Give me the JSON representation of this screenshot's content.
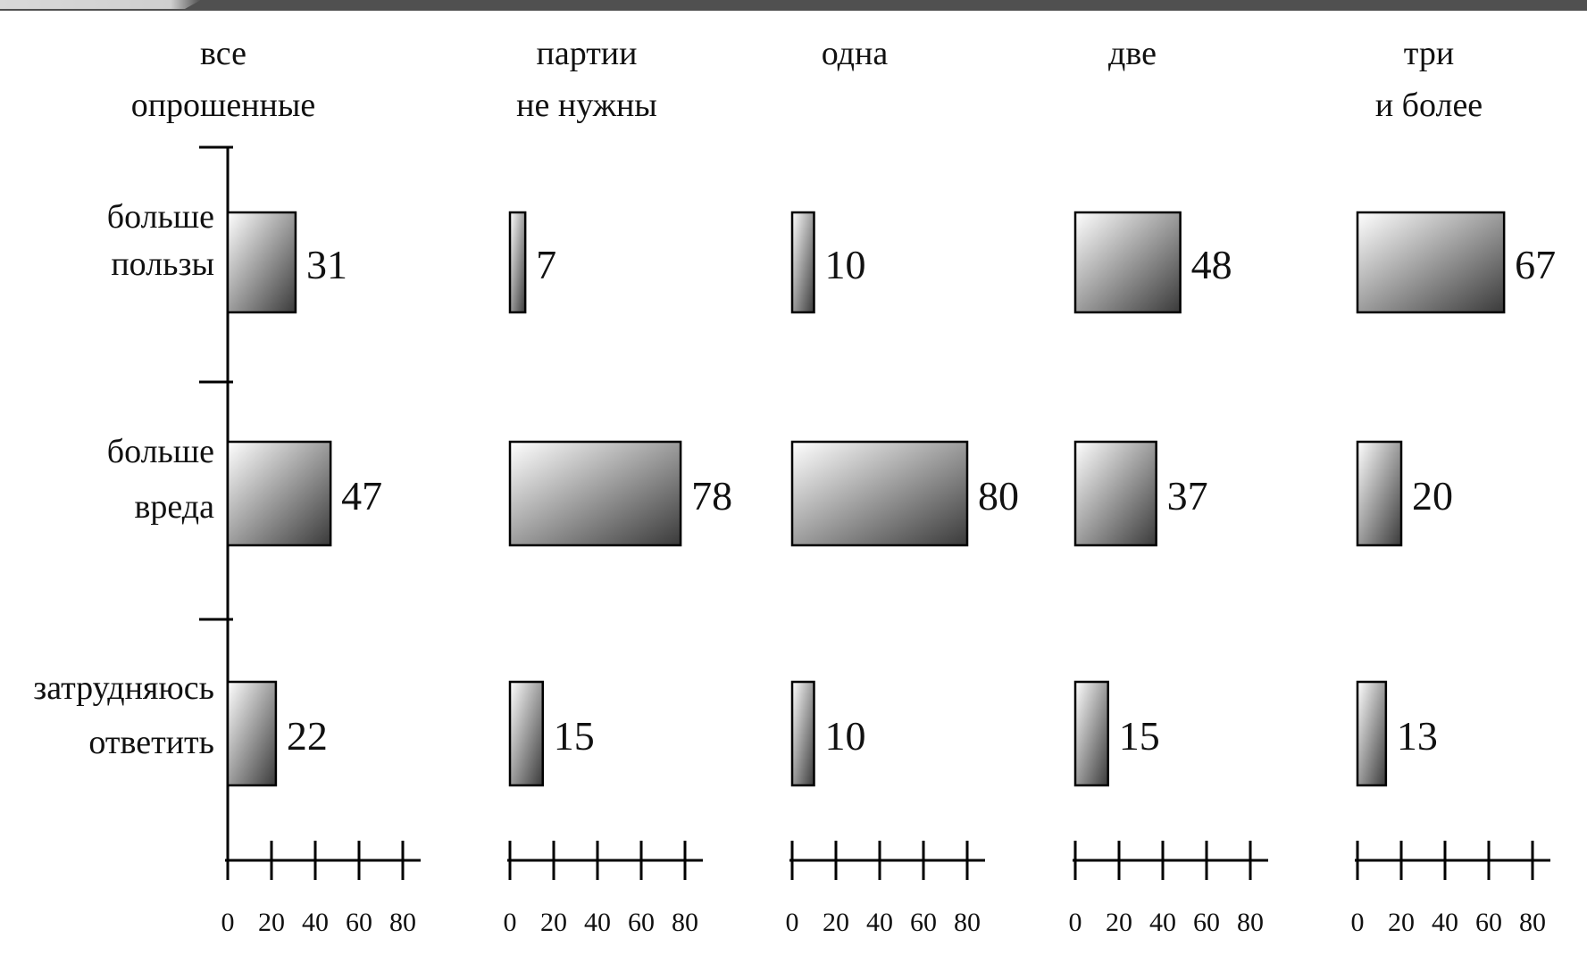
{
  "chart_data": {
    "type": "bar",
    "orientation": "horizontal",
    "panels": [
      {
        "title": [
          "все",
          "опрошенные"
        ],
        "values": [
          31,
          47,
          22
        ]
      },
      {
        "title": [
          "партии",
          "не нужны"
        ],
        "values": [
          7,
          78,
          15
        ]
      },
      {
        "title": [
          "одна"
        ],
        "values": [
          10,
          80,
          10
        ]
      },
      {
        "title": [
          "две"
        ],
        "values": [
          48,
          37,
          15
        ]
      },
      {
        "title": [
          "три",
          "и более"
        ],
        "values": [
          67,
          20,
          13
        ]
      }
    ],
    "categories": [
      [
        "больше",
        "пользы"
      ],
      [
        "больше",
        "вреда"
      ],
      [
        "затрудняюсь",
        "ответить"
      ]
    ],
    "xticks": [
      "0",
      "20",
      "40",
      "60",
      "80"
    ],
    "xlim": [
      0,
      80
    ],
    "bar_fill": {
      "light": "#ffffff",
      "dark": "#3a3a3a"
    },
    "grid": false,
    "legend": "none"
  }
}
